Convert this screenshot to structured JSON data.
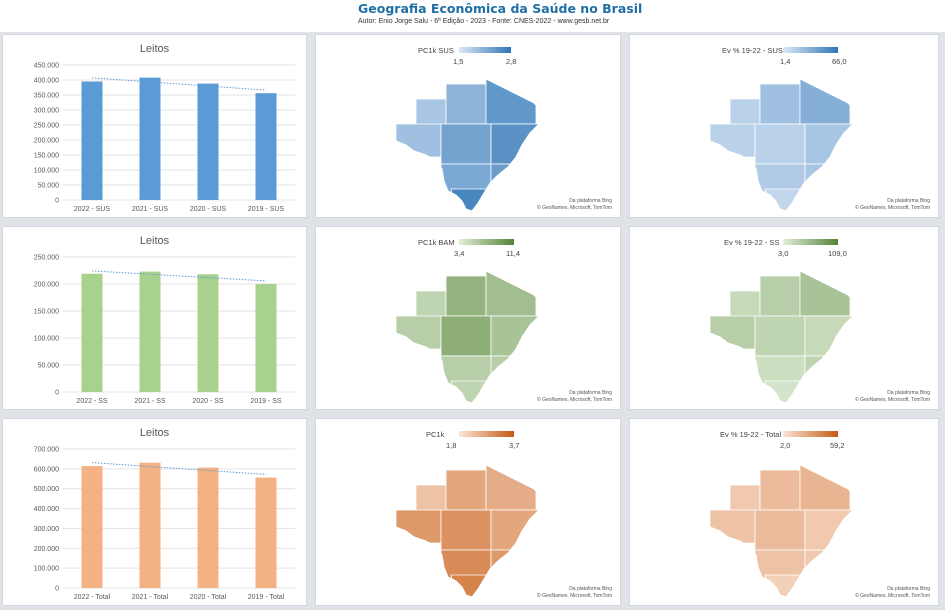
{
  "header": {
    "title": "Geografia Econômica da Saúde no Brasil",
    "subtitle": "Autor: Enio Jorge Salu - 6ª Edição - 2023 - Fonte: CNES-2022 - www.gesb.net.br"
  },
  "chart_data": [
    {
      "type": "bar",
      "title": "Leitos",
      "categories": [
        "2022 - SUS",
        "2021 - SUS",
        "2020 - SUS",
        "2019 - SUS"
      ],
      "values": [
        395000,
        408000,
        388000,
        356000
      ],
      "ylim": [
        0,
        450000
      ],
      "yticks": [
        "0",
        "50.000",
        "100.000",
        "150.000",
        "200.000",
        "250.000",
        "300.000",
        "350.000",
        "400.000",
        "450.000"
      ],
      "trendline": true,
      "color": "#5b9bd5"
    },
    {
      "type": "bar",
      "title": "Leitos",
      "categories": [
        "2022 - SS",
        "2021 - SS",
        "2020 - SS",
        "2019 - SS"
      ],
      "values": [
        219000,
        223000,
        218000,
        200000
      ],
      "ylim": [
        0,
        250000
      ],
      "yticks": [
        "0",
        "50.000",
        "100.000",
        "150.000",
        "200.000",
        "250.000"
      ],
      "trendline": true,
      "color": "#a9d18e"
    },
    {
      "type": "bar",
      "title": "Leitos",
      "categories": [
        "2022 - Total",
        "2021 - Total",
        "2020 - Total",
        "2019 - Total"
      ],
      "values": [
        614000,
        631000,
        606000,
        556000
      ],
      "ylim": [
        0,
        700000
      ],
      "yticks": [
        "0",
        "100.000",
        "200.000",
        "300.000",
        "400.000",
        "500.000",
        "600.000",
        "700.000"
      ],
      "trendline": true,
      "color": "#f4b183"
    }
  ],
  "maps": [
    {
      "legend_title": "PC1k SUS",
      "min": "1,5",
      "max": "2,8",
      "low_color": "#dce8f6",
      "high_color": "#2e75b6",
      "credit1": "Da plataforma Bing",
      "credit2": "© GeoNames, Microsoft, TomTom"
    },
    {
      "legend_title": "Ev % 19-22 - SUS",
      "min": "1,4",
      "max": "66,0",
      "low_color": "#dce8f6",
      "high_color": "#2e75b6",
      "credit1": "Da plataforma Bing",
      "credit2": "© GeoNames, Microsoft, TomTom"
    },
    {
      "legend_title": "PC1k BAM",
      "min": "3,4",
      "max": "11,4",
      "low_color": "#e2efda",
      "high_color": "#548235",
      "credit1": "Da plataforma Bing",
      "credit2": "© GeoNames, Microsoft, TomTom"
    },
    {
      "legend_title": "Ev % 19-22 - SS",
      "min": "3,0",
      "max": "109,0",
      "low_color": "#e2efda",
      "high_color": "#548235",
      "credit1": "Da plataforma Bing",
      "credit2": "© GeoNames, Microsoft, TomTom"
    },
    {
      "legend_title": "PC1k",
      "min": "1,8",
      "max": "3,7",
      "low_color": "#fbe5d6",
      "high_color": "#c55a11",
      "credit1": "Da plataforma Bing",
      "credit2": "© GeoNames, Microsoft, TomTom"
    },
    {
      "legend_title": "Ev % 19-22 - Total",
      "min": "2,0",
      "max": "59,2",
      "low_color": "#fbe5d6",
      "high_color": "#c55a11",
      "credit1": "Da plataforma Bing",
      "credit2": "© GeoNames, Microsoft, TomTom"
    }
  ]
}
